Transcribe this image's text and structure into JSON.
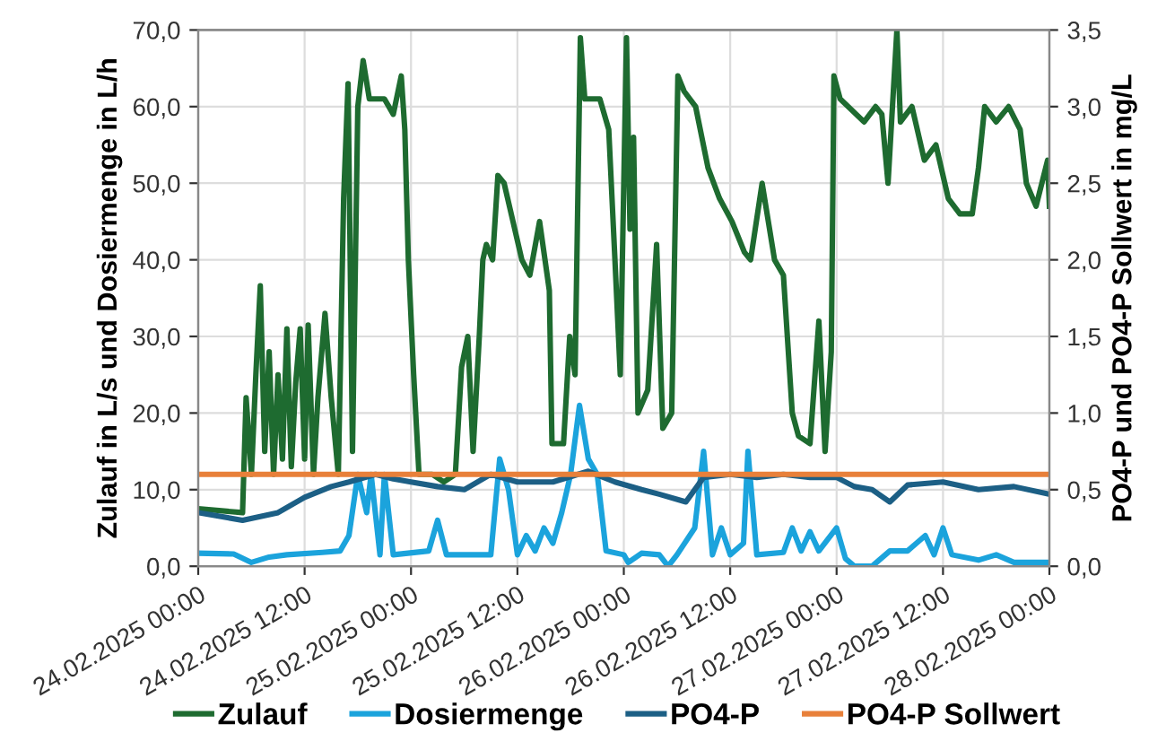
{
  "chart_data": {
    "type": "line",
    "ylabel": "Zulauf in L/s und Dosiermenge in L/h",
    "y2label": "PO4-P und PO4-P Sollwert in mg/L",
    "xlim": [
      "2025-02-24T00:00",
      "2025-02-28T00:00"
    ],
    "xticks": [
      {
        "value": "2025-02-24T00:00",
        "label": "24.02.2025 00:00"
      },
      {
        "value": "2025-02-24T12:00",
        "label": "24.02.2025 12:00"
      },
      {
        "value": "2025-02-25T00:00",
        "label": "25.02.2025 00:00"
      },
      {
        "value": "2025-02-25T12:00",
        "label": "25.02.2025 12:00"
      },
      {
        "value": "2025-02-26T00:00",
        "label": "26.02.2025 00:00"
      },
      {
        "value": "2025-02-26T12:00",
        "label": "26.02.2025 12:00"
      },
      {
        "value": "2025-02-27T00:00",
        "label": "27.02.2025 00:00"
      },
      {
        "value": "2025-02-27T12:00",
        "label": "27.02.2025 12:00"
      },
      {
        "value": "2025-02-28T00:00",
        "label": "28.02.2025 00:00"
      }
    ],
    "ylim": [
      0,
      70
    ],
    "yticks": [
      {
        "value": 0,
        "label": "0,0"
      },
      {
        "value": 10,
        "label": "10,0"
      },
      {
        "value": 20,
        "label": "20,0"
      },
      {
        "value": 30,
        "label": "30,0"
      },
      {
        "value": 40,
        "label": "40,0"
      },
      {
        "value": 50,
        "label": "50,0"
      },
      {
        "value": 60,
        "label": "60,0"
      },
      {
        "value": 70,
        "label": "70,0"
      }
    ],
    "y2lim": [
      0,
      3.5
    ],
    "y2ticks": [
      {
        "value": 0,
        "label": "0,0"
      },
      {
        "value": 0.5,
        "label": "0,5"
      },
      {
        "value": 1,
        "label": "1,0"
      },
      {
        "value": 1.5,
        "label": "1,5"
      },
      {
        "value": 2,
        "label": "2,0"
      },
      {
        "value": 2.5,
        "label": "2,5"
      },
      {
        "value": 3,
        "label": "3,0"
      },
      {
        "value": 3.5,
        "label": "3,5"
      }
    ],
    "grid": true,
    "legend": "bottom",
    "marker": "none",
    "line_style": "solid",
    "series": [
      {
        "name": "Zulauf",
        "color": "#1e6b30",
        "x": [
          "2025-02-24T00:00",
          "2025-02-24T05:00",
          "2025-02-24T05:24",
          "2025-02-24T06:00",
          "2025-02-24T06:30",
          "2025-02-24T07:00",
          "2025-02-24T07:30",
          "2025-02-24T08:00",
          "2025-02-24T08:30",
          "2025-02-24T09:00",
          "2025-02-24T09:30",
          "2025-02-24T10:00",
          "2025-02-24T10:30",
          "2025-02-24T11:00",
          "2025-02-24T11:30",
          "2025-02-24T12:00",
          "2025-02-24T12:24",
          "2025-02-24T13:00",
          "2025-02-24T13:30",
          "2025-02-24T14:18",
          "2025-02-24T15:00",
          "2025-02-24T15:48",
          "2025-02-24T16:24",
          "2025-02-24T16:54",
          "2025-02-24T17:24",
          "2025-02-24T18:00",
          "2025-02-24T18:36",
          "2025-02-24T19:18",
          "2025-02-24T21:00",
          "2025-02-24T22:00",
          "2025-02-24T22:54",
          "2025-02-24T23:18",
          "2025-02-24T23:42",
          "2025-02-25T00:18",
          "2025-02-25T00:54",
          "2025-02-25T02:24",
          "2025-02-25T03:42",
          "2025-02-25T05:00",
          "2025-02-25T05:42",
          "2025-02-25T06:24",
          "2025-02-25T07:00",
          "2025-02-25T07:42",
          "2025-02-25T08:06",
          "2025-02-25T08:30",
          "2025-02-25T09:12",
          "2025-02-25T09:48",
          "2025-02-25T10:30",
          "2025-02-25T11:30",
          "2025-02-25T12:30",
          "2025-02-25T13:24",
          "2025-02-25T14:30",
          "2025-02-25T15:36",
          "2025-02-25T15:54",
          "2025-02-25T17:12",
          "2025-02-25T17:54",
          "2025-02-25T18:30",
          "2025-02-25T19:06",
          "2025-02-25T19:36",
          "2025-02-25T21:18",
          "2025-02-25T22:18",
          "2025-02-25T23:00",
          "2025-02-25T23:36",
          "2025-02-26T00:18",
          "2025-02-26T00:42",
          "2025-02-26T01:06",
          "2025-02-26T01:36",
          "2025-02-26T02:42",
          "2025-02-26T03:42",
          "2025-02-26T04:24",
          "2025-02-26T05:24",
          "2025-02-26T06:06",
          "2025-02-26T06:48",
          "2025-02-26T08:06",
          "2025-02-26T09:30",
          "2025-02-26T10:48",
          "2025-02-26T12:12",
          "2025-02-26T13:36",
          "2025-02-26T14:18",
          "2025-02-26T15:36",
          "2025-02-26T17:00",
          "2025-02-26T18:00",
          "2025-02-26T19:00",
          "2025-02-26T19:42",
          "2025-02-26T21:00",
          "2025-02-26T22:00",
          "2025-02-26T22:42",
          "2025-02-26T23:24",
          "2025-02-26T23:42",
          "2025-02-27T00:24",
          "2025-02-27T03:06",
          "2025-02-27T04:24",
          "2025-02-27T05:06",
          "2025-02-27T05:48",
          "2025-02-27T06:48",
          "2025-02-27T07:12",
          "2025-02-27T08:30",
          "2025-02-27T09:54",
          "2025-02-27T11:12",
          "2025-02-27T12:36",
          "2025-02-27T13:54",
          "2025-02-27T15:18",
          "2025-02-27T16:00",
          "2025-02-27T16:42",
          "2025-02-27T18:00",
          "2025-02-27T19:24",
          "2025-02-27T20:42",
          "2025-02-27T21:24",
          "2025-02-27T22:30",
          "2025-02-27T23:48",
          "2025-02-28T00:00"
        ],
        "values": [
          7.5,
          7,
          22,
          12,
          25,
          36.6,
          15,
          28,
          12,
          25,
          14,
          31,
          13,
          24,
          31,
          14,
          31.5,
          12,
          22,
          33,
          22,
          12,
          48,
          63,
          15,
          60,
          66,
          61,
          61,
          59,
          64,
          57,
          40,
          25,
          12,
          12,
          11,
          12,
          26,
          30,
          15,
          30,
          40,
          42,
          40,
          51,
          50,
          45,
          40,
          38,
          45,
          36,
          16,
          16,
          30,
          25,
          69,
          61,
          61,
          57,
          40,
          25,
          69,
          44,
          56,
          20,
          23,
          42,
          18,
          20,
          64,
          62,
          60,
          52,
          48,
          45,
          41,
          40,
          50,
          40,
          38,
          20,
          17,
          16,
          32,
          15,
          28,
          64,
          61,
          58,
          60,
          59,
          50,
          70,
          58,
          60,
          53,
          55,
          48,
          46,
          46,
          52,
          60,
          58,
          60,
          57,
          50,
          47,
          53,
          47
        ]
      },
      {
        "name": "Dosiermenge",
        "color": "#1ba3dc",
        "x": [
          "2025-02-24T00:00",
          "2025-02-24T04:00",
          "2025-02-24T06:00",
          "2025-02-24T08:00",
          "2025-02-24T10:00",
          "2025-02-24T14:00",
          "2025-02-24T16:00",
          "2025-02-24T17:00",
          "2025-02-24T18:00",
          "2025-02-24T19:00",
          "2025-02-24T19:30",
          "2025-02-24T20:30",
          "2025-02-24T21:00",
          "2025-02-24T22:00",
          "2025-02-25T02:00",
          "2025-02-25T03:00",
          "2025-02-25T04:00",
          "2025-02-25T09:00",
          "2025-02-25T10:00",
          "2025-02-25T11:00",
          "2025-02-25T12:00",
          "2025-02-25T13:00",
          "2025-02-25T14:00",
          "2025-02-25T15:00",
          "2025-02-25T16:00",
          "2025-02-25T17:00",
          "2025-02-25T18:00",
          "2025-02-25T19:00",
          "2025-02-25T20:00",
          "2025-02-25T21:00",
          "2025-02-25T22:00",
          "2025-02-26T00:00",
          "2025-02-26T00:30",
          "2025-02-26T02:00",
          "2025-02-26T04:00",
          "2025-02-26T05:00",
          "2025-02-26T06:00",
          "2025-02-26T08:00",
          "2025-02-26T09:00",
          "2025-02-26T10:00",
          "2025-02-26T11:00",
          "2025-02-26T12:00",
          "2025-02-26T13:30",
          "2025-02-26T14:00",
          "2025-02-26T15:00",
          "2025-02-26T18:00",
          "2025-02-26T19:00",
          "2025-02-26T20:00",
          "2025-02-26T21:00",
          "2025-02-26T22:00",
          "2025-02-27T00:00",
          "2025-02-27T01:00",
          "2025-02-27T02:00",
          "2025-02-27T04:00",
          "2025-02-27T06:00",
          "2025-02-27T08:00",
          "2025-02-27T10:00",
          "2025-02-27T11:00",
          "2025-02-27T12:00",
          "2025-02-27T13:00",
          "2025-02-27T16:00",
          "2025-02-27T18:00",
          "2025-02-27T20:00",
          "2025-02-27T22:00",
          "2025-02-28T00:00"
        ],
        "values": [
          1.7,
          1.6,
          0.5,
          1.2,
          1.5,
          1.8,
          2,
          4,
          12,
          7,
          12,
          1.5,
          12,
          1.5,
          2,
          6,
          1.5,
          1.5,
          14,
          10,
          1.5,
          4,
          2,
          5,
          3,
          7,
          12,
          21,
          14,
          12,
          2,
          1.5,
          0.5,
          1.7,
          1.5,
          0,
          1.5,
          5,
          15,
          1.5,
          5,
          1.5,
          3,
          15,
          1.5,
          1.8,
          5,
          2,
          4.5,
          2,
          5,
          1,
          0,
          0,
          2,
          2,
          4,
          1.5,
          5,
          1.5,
          0.8,
          1.5,
          0.5,
          0.5,
          0.5
        ]
      },
      {
        "name": "PO4-P",
        "color": "#1c5f85",
        "axis": "y2",
        "x": [
          "2025-02-24T00:00",
          "2025-02-24T02:00",
          "2025-02-24T05:00",
          "2025-02-24T09:00",
          "2025-02-24T12:00",
          "2025-02-24T15:00",
          "2025-02-24T17:00",
          "2025-02-24T20:00",
          "2025-02-24T22:00",
          "2025-02-25T00:00",
          "2025-02-25T03:00",
          "2025-02-25T06:00",
          "2025-02-25T09:00",
          "2025-02-25T12:00",
          "2025-02-25T16:00",
          "2025-02-25T20:00",
          "2025-02-25T23:00",
          "2025-02-26T02:00",
          "2025-02-26T04:00",
          "2025-02-26T07:00",
          "2025-02-26T09:00",
          "2025-02-26T12:00",
          "2025-02-26T15:00",
          "2025-02-26T18:00",
          "2025-02-26T21:00",
          "2025-02-27T00:00",
          "2025-02-27T02:00",
          "2025-02-27T04:00",
          "2025-02-27T06:00",
          "2025-02-27T08:00",
          "2025-02-27T12:00",
          "2025-02-27T16:00",
          "2025-02-27T20:00",
          "2025-02-28T00:00"
        ],
        "values": [
          0.35,
          0.33,
          0.3,
          0.35,
          0.45,
          0.52,
          0.55,
          0.6,
          0.57,
          0.55,
          0.52,
          0.5,
          0.6,
          0.55,
          0.55,
          0.62,
          0.55,
          0.5,
          0.47,
          0.42,
          0.58,
          0.6,
          0.58,
          0.6,
          0.58,
          0.58,
          0.52,
          0.5,
          0.42,
          0.53,
          0.55,
          0.5,
          0.52,
          0.47
        ]
      },
      {
        "name": "PO4-P Sollwert",
        "color": "#e8803a",
        "axis": "y2",
        "x": [
          "2025-02-24T00:00",
          "2025-02-28T00:00"
        ],
        "values": [
          0.6,
          0.6
        ]
      }
    ]
  }
}
